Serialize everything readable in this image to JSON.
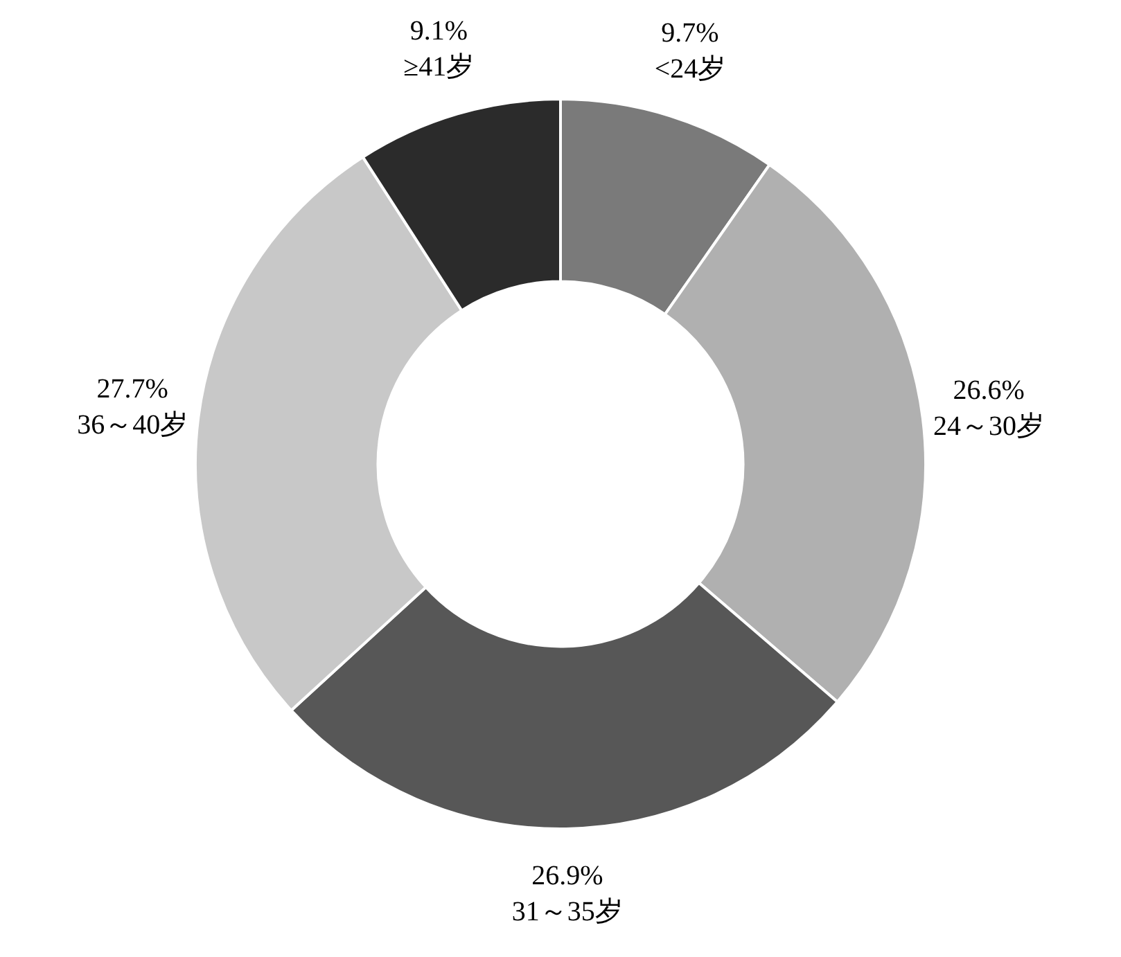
{
  "chart_data": {
    "type": "donut",
    "categories": [
      "<24岁",
      "24～30岁",
      "31～35岁",
      "36～40岁",
      "≥41岁"
    ],
    "values": [
      9.7,
      26.6,
      26.9,
      27.7,
      9.1
    ],
    "colors": [
      "#7a7a7a",
      "#b0b0b0",
      "#575757",
      "#c8c8c8",
      "#2b2b2b"
    ],
    "value_labels": [
      "9.7%",
      "26.6%",
      "26.9%",
      "27.7%",
      "9.1%"
    ],
    "legend": false
  }
}
